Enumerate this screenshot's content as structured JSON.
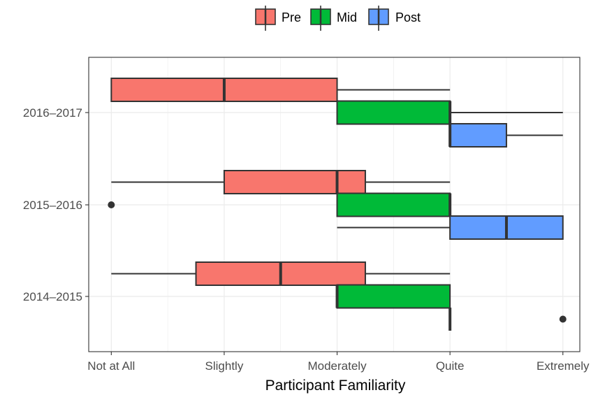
{
  "chart_data": {
    "type": "boxplot",
    "orientation": "horizontal",
    "title": "",
    "xlabel": "Participant Familiarity",
    "ylabel": "",
    "x_tick_labels": [
      "Not at All",
      "Slightly",
      "Moderately",
      "Quite",
      "Extremely"
    ],
    "x_range": [
      0.8,
      5.15
    ],
    "categories": [
      "2014–2015",
      "2015–2016",
      "2016–2017"
    ],
    "legend_position": "top",
    "grid": true,
    "series": [
      {
        "name": "Pre",
        "color": "#F8766D",
        "boxes": [
          {
            "category": "2014–2015",
            "whisker_low": 1,
            "q1": 1.75,
            "median": 2.5,
            "q3": 3.25,
            "whisker_high": 4,
            "outliers": []
          },
          {
            "category": "2015–2016",
            "whisker_low": 1,
            "q1": 2,
            "median": 3,
            "q3": 3.25,
            "whisker_high": 4,
            "outliers": []
          },
          {
            "category": "2016–2017",
            "whisker_low": 1,
            "q1": 1,
            "median": 2,
            "q3": 3,
            "whisker_high": 4,
            "outliers": []
          }
        ]
      },
      {
        "name": "Mid",
        "color": "#00BA38",
        "boxes": [
          {
            "category": "2014–2015",
            "whisker_low": 3,
            "q1": 3,
            "median": 3,
            "q3": 4,
            "whisker_high": 4,
            "outliers": []
          },
          {
            "category": "2015–2016",
            "whisker_low": 3,
            "q1": 3,
            "median": 4,
            "q3": 4,
            "whisker_high": 4,
            "outliers": [
              1
            ]
          },
          {
            "category": "2016–2017",
            "whisker_low": 3,
            "q1": 3,
            "median": 4,
            "q3": 4,
            "whisker_high": 5,
            "outliers": []
          }
        ]
      },
      {
        "name": "Post",
        "color": "#619CFF",
        "boxes": [
          {
            "category": "2014–2015",
            "whisker_low": 4,
            "q1": 4,
            "median": 4,
            "q3": 4,
            "whisker_high": 4,
            "outliers": [
              5
            ]
          },
          {
            "category": "2015–2016",
            "whisker_low": 3,
            "q1": 4,
            "median": 4.5,
            "q3": 5,
            "whisker_high": 5,
            "outliers": []
          },
          {
            "category": "2016–2017",
            "whisker_low": 4,
            "q1": 4,
            "median": 4,
            "q3": 4.5,
            "whisker_high": 5,
            "outliers": []
          }
        ]
      }
    ]
  }
}
